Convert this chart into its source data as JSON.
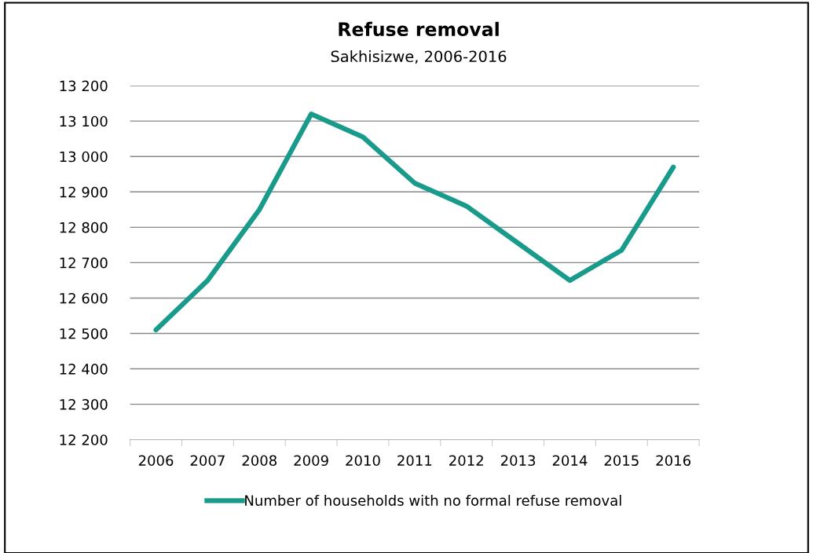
{
  "chart_data": {
    "type": "line",
    "title": "Refuse removal",
    "subtitle": "Sakhisizwe, 2006-2016",
    "categories": [
      "2006",
      "2007",
      "2008",
      "2009",
      "2010",
      "2011",
      "2012",
      "2013",
      "2014",
      "2015",
      "2016"
    ],
    "series": [
      {
        "name": "Number of households with no formal refuse removal",
        "color": "#199b8b",
        "values": [
          12510,
          12650,
          12850,
          13120,
          13055,
          12925,
          12860,
          12755,
          12650,
          12735,
          12970
        ]
      }
    ],
    "ylim": [
      12200,
      13200
    ],
    "yticks": [
      {
        "value": 12200,
        "label": "12 200"
      },
      {
        "value": 12300,
        "label": "12 300"
      },
      {
        "value": 12400,
        "label": "12 400"
      },
      {
        "value": 12500,
        "label": "12 500"
      },
      {
        "value": 12600,
        "label": "12 600"
      },
      {
        "value": 12700,
        "label": "12 700"
      },
      {
        "value": 12800,
        "label": "12 800"
      },
      {
        "value": 12900,
        "label": "12 900"
      },
      {
        "value": 13000,
        "label": "13 000"
      },
      {
        "value": 13100,
        "label": "13 100"
      },
      {
        "value": 13200,
        "label": "13 200"
      }
    ],
    "grid": "y",
    "legend": "bottom",
    "marker": "none",
    "line_style": "solid"
  }
}
